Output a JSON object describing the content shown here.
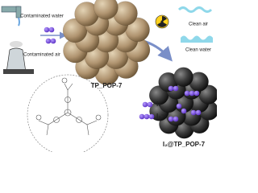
{
  "source": {
    "water_label": "Contaminated water",
    "air_label": "Contaminated air"
  },
  "adsorbent": {
    "label": "TP_POP-7"
  },
  "outputs": {
    "air_label": "Clean air",
    "water_label": "Clean water"
  },
  "legend": {
    "iodine": "I₂",
    "triiodide": "I₃⁻"
  },
  "product": {
    "label": "I₂@TP_POP-7"
  }
}
